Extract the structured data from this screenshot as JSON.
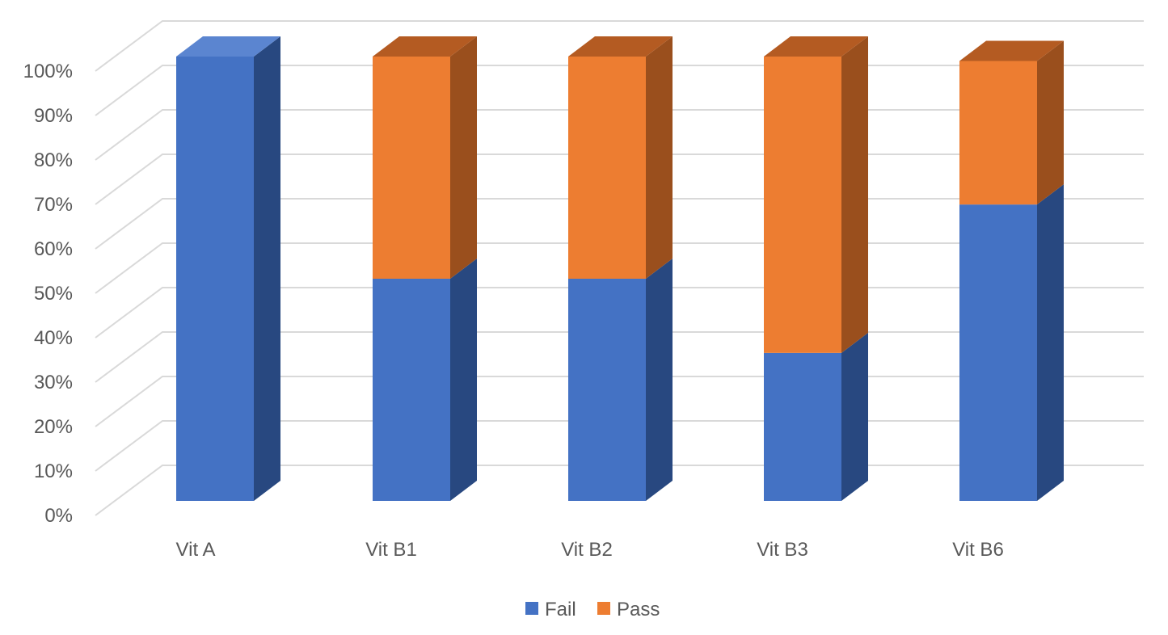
{
  "chart_data": {
    "type": "bar",
    "stacked": true,
    "three_d": true,
    "categories": [
      "Vit A",
      "Vit B1",
      "Vit B2",
      "Vit B3",
      "Vit B6"
    ],
    "series": [
      {
        "name": "Fail",
        "values": [
          100,
          50,
          50,
          33.3,
          66.7
        ]
      },
      {
        "name": "Pass",
        "values": [
          0,
          50,
          50,
          66.7,
          32.3
        ]
      }
    ],
    "y_ticks": [
      "0%",
      "10%",
      "20%",
      "30%",
      "40%",
      "50%",
      "60%",
      "70%",
      "80%",
      "90%",
      "100%"
    ],
    "ylim": [
      0,
      100
    ],
    "grid": true,
    "legend_position": "bottom",
    "colors": {
      "Fail": {
        "front": "#4472c4",
        "side": "#284880",
        "top": "#5b85d0"
      },
      "Pass": {
        "front": "#ed7d31",
        "side": "#9a4f1d",
        "top": "#b45b22"
      },
      "grid": "#d9d9d9",
      "text": "#595959"
    }
  }
}
